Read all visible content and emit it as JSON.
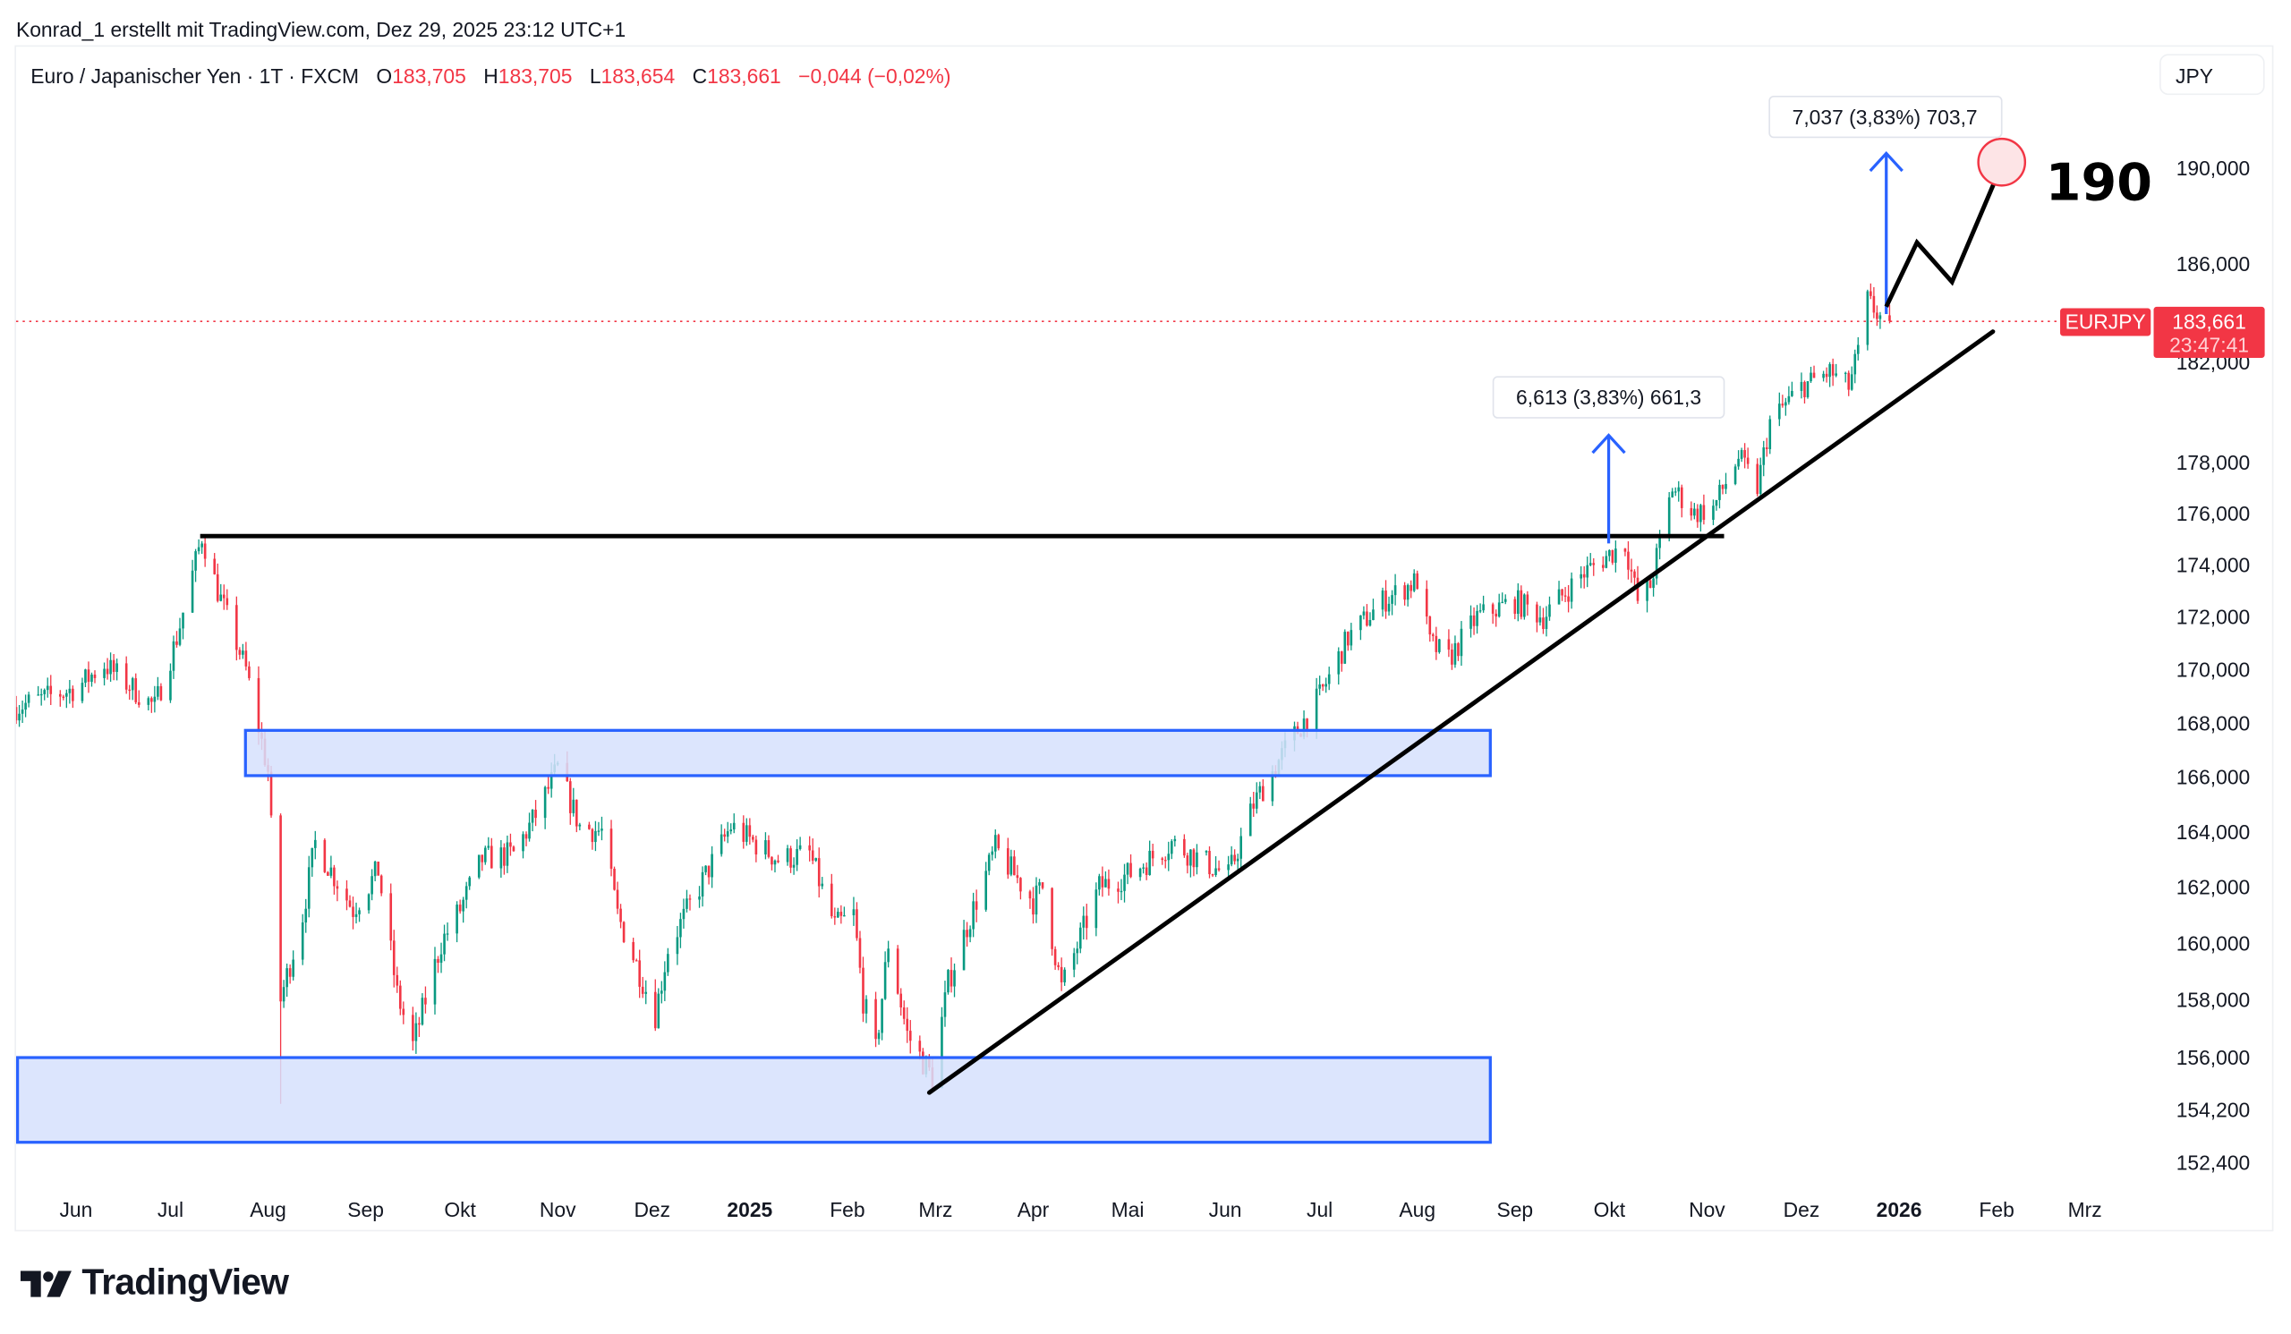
{
  "credit": "Konrad_1 erstellt mit TradingView.com, Dez 29, 2025 23:12 UTC+1",
  "legend": {
    "symbol": "Euro / Japanischer Yen · 1T · FXCM",
    "o_label": "O",
    "o": "183,705",
    "h_label": "H",
    "h": "183,705",
    "l_label": "L",
    "l": "183,654",
    "c_label": "C",
    "c": "183,661",
    "change": "−0,044 (−0,02%)"
  },
  "currency_button": "JPY",
  "last_price": {
    "symbol": "EURJPY",
    "price": "183,661",
    "countdown": "23:47:41",
    "value": 183.661
  },
  "annotations": {
    "measure_1": "6,613 (3,83%) 661,3",
    "measure_2": "7,037 (3,83%) 703,7",
    "target": "190"
  },
  "logo": "TradingView",
  "colors": {
    "up": "#089981",
    "down": "#f23645",
    "zone_fill": "#d6e0fd",
    "zone_stroke": "#2962ff",
    "arrow": "#2962ff"
  },
  "chart_data": {
    "type": "candlestick",
    "scale": "log",
    "ylim": [
      151.5,
      192
    ],
    "price_ticks": [
      {
        "label": "190,000",
        "value": 190
      },
      {
        "label": "186,000",
        "value": 186
      },
      {
        "label": "182,000",
        "value": 182
      },
      {
        "label": "178,000",
        "value": 178
      },
      {
        "label": "176,000",
        "value": 176
      },
      {
        "label": "174,000",
        "value": 174
      },
      {
        "label": "172,000",
        "value": 172
      },
      {
        "label": "170,000",
        "value": 170
      },
      {
        "label": "168,000",
        "value": 168
      },
      {
        "label": "166,000",
        "value": 166
      },
      {
        "label": "164,000",
        "value": 164
      },
      {
        "label": "162,000",
        "value": 162
      },
      {
        "label": "160,000",
        "value": 160
      },
      {
        "label": "158,000",
        "value": 158
      },
      {
        "label": "156,000",
        "value": 156
      },
      {
        "label": "154,200",
        "value": 154.2
      },
      {
        "label": "152,400",
        "value": 152.4
      }
    ],
    "time_ticks": [
      {
        "label": "Jun",
        "date": "2024-06-01"
      },
      {
        "label": "Jul",
        "date": "2024-07-01"
      },
      {
        "label": "Aug",
        "date": "2024-08-01"
      },
      {
        "label": "Sep",
        "date": "2024-09-01"
      },
      {
        "label": "Okt",
        "date": "2024-10-01"
      },
      {
        "label": "Nov",
        "date": "2024-11-01"
      },
      {
        "label": "Dez",
        "date": "2024-12-01"
      },
      {
        "label": "2025",
        "date": "2025-01-01",
        "bold": true
      },
      {
        "label": "Feb",
        "date": "2025-02-01"
      },
      {
        "label": "Mrz",
        "date": "2025-03-01"
      },
      {
        "label": "Apr",
        "date": "2025-04-01"
      },
      {
        "label": "Mai",
        "date": "2025-05-01"
      },
      {
        "label": "Jun",
        "date": "2025-06-01"
      },
      {
        "label": "Jul",
        "date": "2025-07-01"
      },
      {
        "label": "Aug",
        "date": "2025-08-01"
      },
      {
        "label": "Sep",
        "date": "2025-09-01"
      },
      {
        "label": "Okt",
        "date": "2025-10-01"
      },
      {
        "label": "Nov",
        "date": "2025-11-01"
      },
      {
        "label": "Dez",
        "date": "2025-12-01"
      },
      {
        "label": "2026",
        "date": "2026-01-01",
        "bold": true
      },
      {
        "label": "Feb",
        "date": "2026-02-01"
      },
      {
        "label": "Mrz",
        "date": "2026-03-01"
      }
    ],
    "approx_close_path": [
      [
        "2024-05-13",
        168.6
      ],
      [
        "2024-06-01",
        169.3
      ],
      [
        "2024-06-10",
        170.2
      ],
      [
        "2024-06-20",
        169.2
      ],
      [
        "2024-06-26",
        168.6
      ],
      [
        "2024-07-03",
        171.2
      ],
      [
        "2024-07-11",
        175.1
      ],
      [
        "2024-07-16",
        173.0
      ],
      [
        "2024-07-25",
        170.0
      ],
      [
        "2024-08-01",
        166.2
      ],
      [
        "2024-08-05",
        158.0
      ],
      [
        "2024-08-12",
        161.0
      ],
      [
        "2024-08-16",
        163.6
      ],
      [
        "2024-08-28",
        161.2
      ],
      [
        "2024-09-05",
        162.6
      ],
      [
        "2024-09-11",
        158.2
      ],
      [
        "2024-09-16",
        156.4
      ],
      [
        "2024-09-25",
        160.0
      ],
      [
        "2024-10-01",
        161.2
      ],
      [
        "2024-10-08",
        163.0
      ],
      [
        "2024-10-18",
        163.2
      ],
      [
        "2024-10-25",
        164.6
      ],
      [
        "2024-11-01",
        166.3
      ],
      [
        "2024-11-08",
        164.2
      ],
      [
        "2024-11-15",
        164.0
      ],
      [
        "2024-11-20",
        161.0
      ],
      [
        "2024-12-02",
        157.5
      ],
      [
        "2024-12-06",
        159.8
      ],
      [
        "2024-12-16",
        162.0
      ],
      [
        "2024-12-26",
        164.2
      ],
      [
        "2025-01-10",
        163.0
      ],
      [
        "2025-01-20",
        163.2
      ],
      [
        "2025-01-28",
        160.6
      ],
      [
        "2025-02-03",
        161.0
      ],
      [
        "2025-02-06",
        158.0
      ],
      [
        "2025-02-10",
        156.2
      ],
      [
        "2025-02-14",
        160.0
      ],
      [
        "2025-02-20",
        156.8
      ],
      [
        "2025-02-28",
        155.3
      ],
      [
        "2025-03-05",
        158.6
      ],
      [
        "2025-03-11",
        160.6
      ],
      [
        "2025-03-20",
        163.4
      ],
      [
        "2025-04-01",
        161.5
      ],
      [
        "2025-04-04",
        162.0
      ],
      [
        "2025-04-10",
        158.4
      ],
      [
        "2025-04-22",
        162.0
      ],
      [
        "2025-05-02",
        162.5
      ],
      [
        "2025-05-15",
        163.6
      ],
      [
        "2025-06-02",
        162.4
      ],
      [
        "2025-06-10",
        165.0
      ],
      [
        "2025-06-20",
        167.0
      ],
      [
        "2025-07-01",
        169.0
      ],
      [
        "2025-07-10",
        171.2
      ],
      [
        "2025-07-21",
        172.6
      ],
      [
        "2025-08-01",
        173.4
      ],
      [
        "2025-08-05",
        171.0
      ],
      [
        "2025-08-11",
        170.4
      ],
      [
        "2025-08-20",
        172.0
      ],
      [
        "2025-09-01",
        172.6
      ],
      [
        "2025-09-10",
        172.0
      ],
      [
        "2025-09-22",
        173.6
      ],
      [
        "2025-10-01",
        174.4
      ],
      [
        "2025-10-06",
        174.8
      ],
      [
        "2025-10-10",
        172.6
      ],
      [
        "2025-10-14",
        173.2
      ],
      [
        "2025-10-21",
        177.0
      ],
      [
        "2025-10-28",
        176.0
      ],
      [
        "2025-11-03",
        176.2
      ],
      [
        "2025-11-11",
        178.2
      ],
      [
        "2025-11-17",
        177.0
      ],
      [
        "2025-11-21",
        179.6
      ],
      [
        "2025-12-01",
        181.0
      ],
      [
        "2025-12-10",
        181.6
      ],
      [
        "2025-12-16",
        181.0
      ],
      [
        "2025-12-19",
        182.4
      ],
      [
        "2025-12-22",
        184.5
      ],
      [
        "2025-12-26",
        183.8
      ],
      [
        "2025-12-29",
        183.661
      ]
    ]
  }
}
